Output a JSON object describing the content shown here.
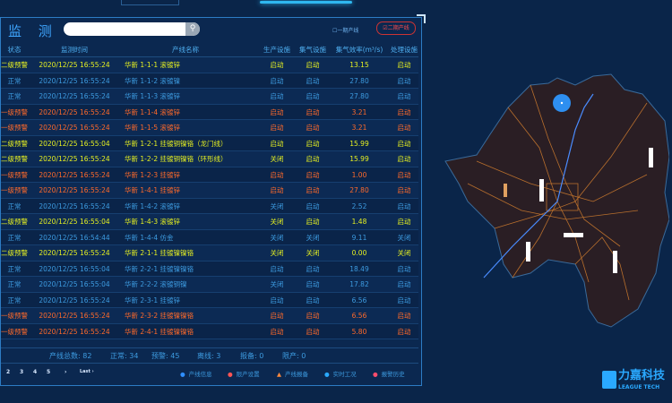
{
  "header": {
    "title": "监 测",
    "search_icon": "search-icon",
    "line1_label": "一期产线",
    "line1_checked": false,
    "line2_label": "二期产线",
    "line2_checked": true
  },
  "columns": [
    "状态",
    "监测时间",
    "产线名称",
    "生产设施",
    "集气设施",
    "集气效率(m³/s)",
    "处理设施"
  ],
  "colors": {
    "yellow": "#e6f021",
    "orange": "#ff6a2a",
    "blue": "#3d9be0"
  },
  "rows": [
    {
      "level": "yellow",
      "status": "二级预警",
      "time": "2020/12/25 16:55:24",
      "name": "华新 1-1-1 滚镀锌",
      "prod": "启动",
      "gas": "启动",
      "eff": "13.15",
      "treat": "启动"
    },
    {
      "level": "blue",
      "status": "正常",
      "time": "2020/12/25 16:55:24",
      "name": "华新 1-1-2 滚镀镍",
      "prod": "启动",
      "gas": "启动",
      "eff": "27.80",
      "treat": "启动"
    },
    {
      "level": "blue",
      "status": "正常",
      "time": "2020/12/25 16:55:24",
      "name": "华新 1-1-3 滚镀锌",
      "prod": "启动",
      "gas": "启动",
      "eff": "27.80",
      "treat": "启动"
    },
    {
      "level": "orange",
      "status": "一级预警",
      "time": "2020/12/25 16:55:24",
      "name": "华新 1-1-4 滚镀锌",
      "prod": "启动",
      "gas": "启动",
      "eff": "3.21",
      "treat": "启动"
    },
    {
      "level": "orange",
      "status": "一级预警",
      "time": "2020/12/25 16:55:24",
      "name": "华新 1-1-5 滚镀锌",
      "prod": "启动",
      "gas": "启动",
      "eff": "3.21",
      "treat": "启动"
    },
    {
      "level": "yellow",
      "status": "二级预警",
      "time": "2020/12/25 16:55:04",
      "name": "华新 1-2-1 挂镀铜镍铬（龙门线）",
      "prod": "启动",
      "gas": "启动",
      "eff": "15.99",
      "treat": "启动"
    },
    {
      "level": "yellow",
      "status": "二级预警",
      "time": "2020/12/25 16:55:24",
      "name": "华新 1-2-2 挂镀铜镍铬（环形线）",
      "prod": "关闭",
      "gas": "启动",
      "eff": "15.99",
      "treat": "启动"
    },
    {
      "level": "orange",
      "status": "一级预警",
      "time": "2020/12/25 16:55:24",
      "name": "华新 1-2-3 挂镀锌",
      "prod": "启动",
      "gas": "启动",
      "eff": "1.00",
      "treat": "启动"
    },
    {
      "level": "orange",
      "status": "一级预警",
      "time": "2020/12/25 16:55:24",
      "name": "华新 1-4-1 挂镀锌",
      "prod": "启动",
      "gas": "启动",
      "eff": "27.80",
      "treat": "启动"
    },
    {
      "level": "blue",
      "status": "正常",
      "time": "2020/12/25 16:55:24",
      "name": "华新 1-4-2 滚镀锌",
      "prod": "关闭",
      "gas": "启动",
      "eff": "2.52",
      "treat": "启动"
    },
    {
      "level": "yellow",
      "status": "二级预警",
      "time": "2020/12/25 16:55:04",
      "name": "华新 1-4-3 滚镀锌",
      "prod": "关闭",
      "gas": "启动",
      "eff": "1.48",
      "treat": "启动"
    },
    {
      "level": "blue",
      "status": "正常",
      "time": "2020/12/25 16:54:44",
      "name": "华新 1-4-4 仿金",
      "prod": "关闭",
      "gas": "关闭",
      "eff": "9.11",
      "treat": "关闭"
    },
    {
      "level": "yellow",
      "status": "二级预警",
      "time": "2020/12/25 16:55:24",
      "name": "华新 2-1-1 挂镀镍镍铬",
      "prod": "关闭",
      "gas": "关闭",
      "eff": "0.00",
      "treat": "关闭"
    },
    {
      "level": "blue",
      "status": "正常",
      "time": "2020/12/25 16:55:04",
      "name": "华新 2-2-1 挂镀镍镍铬",
      "prod": "启动",
      "gas": "启动",
      "eff": "18.49",
      "treat": "启动"
    },
    {
      "level": "blue",
      "status": "正常",
      "time": "2020/12/25 16:55:04",
      "name": "华新 2-2-2 滚镀铜镍",
      "prod": "关闭",
      "gas": "启动",
      "eff": "17.82",
      "treat": "启动"
    },
    {
      "level": "blue",
      "status": "正常",
      "time": "2020/12/25 16:55:24",
      "name": "华新 2-3-1 挂镀锌",
      "prod": "启动",
      "gas": "启动",
      "eff": "6.56",
      "treat": "启动"
    },
    {
      "level": "orange",
      "status": "一级预警",
      "time": "2020/12/25 16:55:24",
      "name": "华新 2-3-2 挂镀镍镍铬",
      "prod": "启动",
      "gas": "启动",
      "eff": "6.56",
      "treat": "启动"
    },
    {
      "level": "orange",
      "status": "一级预警",
      "time": "2020/12/25 16:55:24",
      "name": "华新 2-4-1 挂镀镍镍铬",
      "prod": "启动",
      "gas": "启动",
      "eff": "5.80",
      "treat": "启动"
    }
  ],
  "stats": {
    "total": "产线总数: 82",
    "normal": "正常: 34",
    "warn": "预警: 45",
    "offline": "离线: 3",
    "standby": "报备: 0",
    "stopped": "限产: 0"
  },
  "pager": {
    "pages": [
      "2",
      "3",
      "4",
      "5"
    ],
    "next": "›",
    "last": "Last ›"
  },
  "legend": [
    {
      "icon": "line-icon",
      "label": "产线信息",
      "color": "#2f8fff"
    },
    {
      "icon": "stop-icon",
      "label": "限产设置",
      "color": "#ff5555"
    },
    {
      "icon": "warning-icon",
      "label": "产线报备",
      "color": "#ff8a3d"
    },
    {
      "icon": "worker-icon",
      "label": "实时工况",
      "color": "#2aa9ff"
    },
    {
      "icon": "alarm-icon",
      "label": "报警历史",
      "color": "#ff4d6d"
    }
  ],
  "logo": {
    "cn": "力嘉科技",
    "en": "LEAGUE TECH"
  }
}
